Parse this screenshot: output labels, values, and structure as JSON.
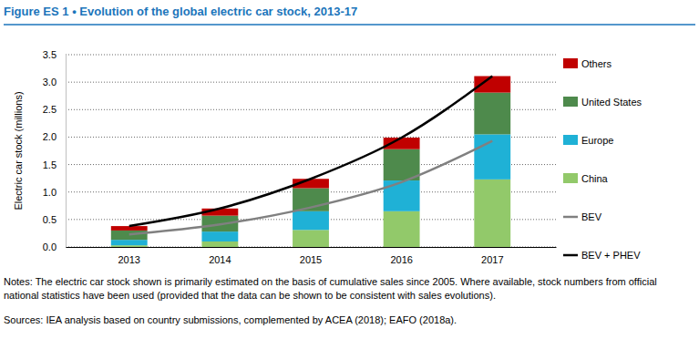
{
  "chart_data": {
    "type": "bar",
    "stacked": true,
    "title": "Figure ES 1 • Evolution of the global electric car stock, 2013-17",
    "y_label": "Electric car stock (millions)",
    "notes": "Notes: The electric car stock shown is primarily estimated on the basis of cumulative sales since 2005. Where available, stock numbers from official national statistics have been used (provided that the data can be shown to be consistent with sales evolutions).",
    "sources": "Sources: IEA analysis based on country submissions, complemented by ACEA (2018); EAFO (2018a).",
    "categories": [
      "2013",
      "2014",
      "2015",
      "2016",
      "2017"
    ],
    "series": [
      {
        "name": "China",
        "type": "bar",
        "color": "#92c96a",
        "values": [
          0.03,
          0.1,
          0.31,
          0.65,
          1.23
        ]
      },
      {
        "name": "Europe",
        "type": "bar",
        "color": "#1fb1d6",
        "values": [
          0.1,
          0.18,
          0.34,
          0.56,
          0.82
        ]
      },
      {
        "name": "United States",
        "type": "bar",
        "color": "#4e8a4c",
        "values": [
          0.17,
          0.29,
          0.42,
          0.57,
          0.76
        ]
      },
      {
        "name": "Others",
        "type": "bar",
        "color": "#c00000",
        "values": [
          0.08,
          0.13,
          0.17,
          0.21,
          0.3
        ]
      },
      {
        "name": "BEV",
        "type": "line",
        "color": "#808080",
        "values": [
          0.23,
          0.41,
          0.72,
          1.18,
          1.93
        ]
      },
      {
        "name": "BEV + PHEV",
        "type": "line",
        "color": "#000000",
        "values": [
          0.38,
          0.7,
          1.24,
          1.99,
          3.11
        ]
      }
    ],
    "ylim": [
      0,
      3.5
    ],
    "yticks": [
      {
        "value": 0,
        "label": "0.0"
      },
      0.5,
      {
        "value": 1,
        "label": "1.0"
      },
      1.5,
      {
        "value": 2,
        "label": "2.0"
      },
      2.5,
      {
        "value": 3,
        "label": "3.0"
      },
      3.5
    ],
    "grid": true,
    "legend": "right"
  }
}
